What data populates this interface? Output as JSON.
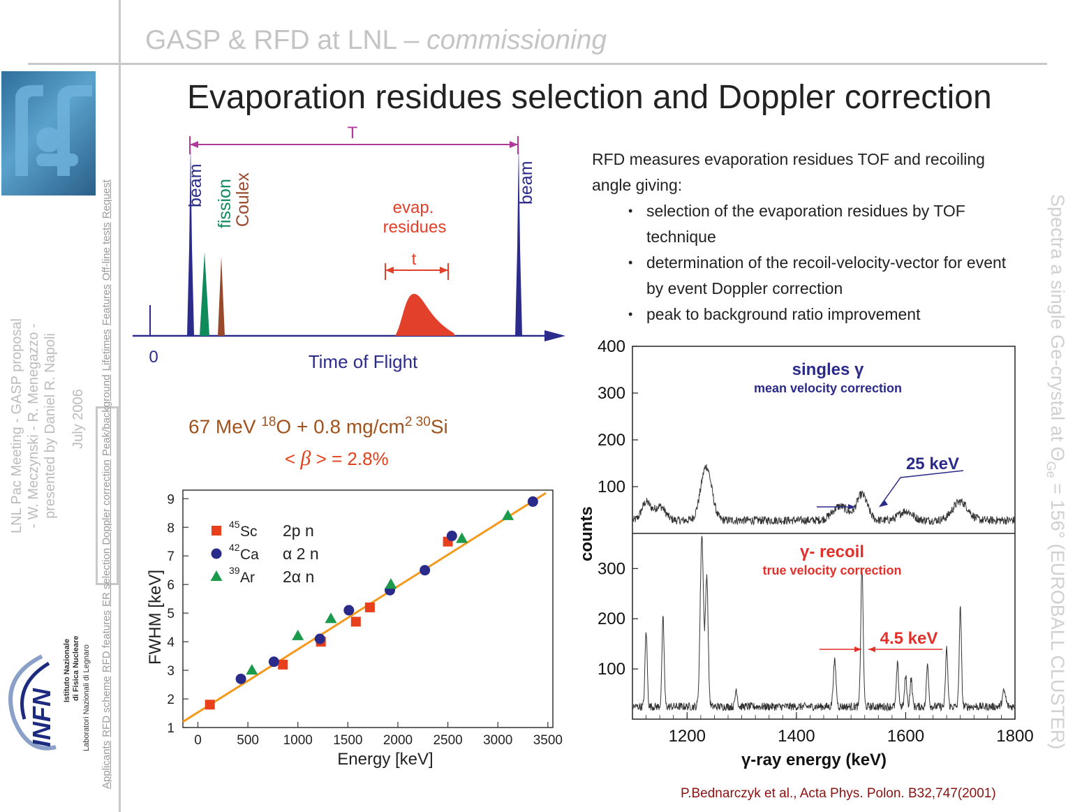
{
  "header": {
    "main": "GASP & RFD at LNL – ",
    "italic": "commissioning"
  },
  "title": "Evaporation residues selection and Doppler correction",
  "meeting": {
    "line1": "LNL Pac Meeting - GASP proposal",
    "line2": "- W. Meczynski - R. Menegazzo -",
    "line3": "presented by Daniel R. Napoli",
    "date": "July 2006"
  },
  "nav_links": [
    "Applicants",
    "RFD scheme",
    "RFD features",
    "ER selection Doppler correction",
    "Peak/background",
    "Lifetimes",
    "Features",
    "Off-line tests",
    "Request"
  ],
  "infn": {
    "line1": "Istituto Nazionale",
    "line2": "di Fisica Nucleare",
    "line3": "Laboratori Nazionali di Legnaro",
    "logo_text": "INFN"
  },
  "tof_diagram": {
    "T_label": "T",
    "beam_left": "beam",
    "beam_right": "beam",
    "fission": "fission",
    "coulex": "Coulex",
    "evap_line1": "evap.",
    "evap_line2": "residues",
    "t_label": "t",
    "zero": "0",
    "axis_label": "Time of Flight",
    "colors": {
      "beam": "#2b2b8c",
      "fission": "#0f8a5a",
      "coulex": "#9a4a2c",
      "evap": "#e2402a",
      "T": "#b03a9a"
    }
  },
  "reaction": {
    "energy": "67 MeV ",
    "proj_mass": "18",
    "proj": "O + 0.8 mg/cm",
    "pow": "2",
    "targ_mass": " 30",
    "targ": "Si"
  },
  "beta_text": {
    "pre": "< ",
    "sym": "β",
    "post": " > = 2.8%"
  },
  "right_text": {
    "intro": "RFD measures evaporation residues TOF and recoiling angle giving:",
    "bullets": [
      "selection of the evaporation residues by TOF technique",
      "determination of the recoil-velocity-vector for event by event Doppler correction",
      "peak to background ratio improvement"
    ]
  },
  "spectra_label": {
    "text": "Spectra a single Ge-crystal at Θ",
    "sub": "Ge",
    "rest": " = 156° (EUROBALL CLUSTER)"
  },
  "reference": "P.Bednarczyk et al., Acta Phys. Polon. B32,747(2001)",
  "chart_data": [
    {
      "type": "scatter",
      "xlabel": "Energy [keV]",
      "ylabel": "FWHM [keV]",
      "xlim": [
        -150,
        3550
      ],
      "ylim": [
        1,
        9.3
      ],
      "xticks": [
        0,
        500,
        1000,
        1500,
        2000,
        2500,
        3000,
        3500
      ],
      "yticks": [
        1,
        2,
        3,
        4,
        5,
        6,
        7,
        8,
        9
      ],
      "legend": [
        {
          "mass": "45",
          "el": "Sc",
          "chan": "2p n",
          "marker": "square",
          "color": "#e8401c"
        },
        {
          "mass": "42",
          "el": "Ca",
          "chan": "α 2 n",
          "marker": "circle",
          "color": "#2a2a8a"
        },
        {
          "mass": "39",
          "el": "Ar",
          "chan": "2α n",
          "marker": "triangle",
          "color": "#1a9a4a"
        }
      ],
      "series": [
        {
          "marker": "square",
          "color": "#e8401c",
          "points": [
            [
              120,
              1.8
            ],
            [
              850,
              3.2
            ],
            [
              1230,
              4.0
            ],
            [
              1580,
              4.7
            ],
            [
              1720,
              5.2
            ],
            [
              2500,
              7.5
            ]
          ]
        },
        {
          "marker": "circle",
          "color": "#2a2a8a",
          "points": [
            [
              430,
              2.7
            ],
            [
              760,
              3.3
            ],
            [
              1220,
              4.1
            ],
            [
              1510,
              5.1
            ],
            [
              1920,
              5.8
            ],
            [
              2270,
              6.5
            ],
            [
              2540,
              7.7
            ],
            [
              3350,
              8.9
            ]
          ]
        },
        {
          "marker": "triangle",
          "color": "#1a9a4a",
          "points": [
            [
              540,
              3.0
            ],
            [
              1000,
              4.2
            ],
            [
              1330,
              4.8
            ],
            [
              1930,
              6.0
            ],
            [
              2640,
              7.6
            ],
            [
              3100,
              8.4
            ]
          ]
        }
      ],
      "fit_line": {
        "color": "#f39a1c",
        "x": [
          -150,
          3480
        ],
        "y": [
          1.2,
          9.2
        ]
      }
    },
    {
      "type": "line",
      "xlabel": "γ-ray energy (keV)",
      "ylabel": "counts",
      "xlim": [
        1100,
        1800
      ],
      "xticks": [
        1200,
        1400,
        1600,
        1800
      ],
      "panels": [
        {
          "title": "singles γ",
          "subtitle": "mean velocity correction",
          "title_color": "#2a2a8a",
          "annotation": "25 keV",
          "ylim": [
            0,
            400
          ],
          "yticks": [
            100,
            200,
            300,
            400
          ],
          "baseline": 28,
          "peaks": [
            [
              1125,
              38,
              8
            ],
            [
              1150,
              30,
              10
            ],
            [
              1235,
              115,
              10
            ],
            [
              1480,
              30,
              14
            ],
            [
              1520,
              55,
              10
            ],
            [
              1600,
              20,
              12
            ],
            [
              1700,
              40,
              14
            ]
          ]
        },
        {
          "title": "γ- recoil",
          "subtitle": "true velocity correction",
          "title_color": "#e2302a",
          "annotation": "4.5 keV",
          "ylim": [
            0,
            370
          ],
          "yticks": [
            100,
            200,
            300
          ],
          "baseline": 25,
          "peaks": [
            [
              1125,
              150,
              2
            ],
            [
              1156,
              175,
              2
            ],
            [
              1227,
              340,
              3
            ],
            [
              1236,
              260,
              2.5
            ],
            [
              1290,
              35,
              2
            ],
            [
              1470,
              90,
              2.5
            ],
            [
              1520,
              275,
              2.2
            ],
            [
              1585,
              85,
              2
            ],
            [
              1600,
              60,
              2
            ],
            [
              1610,
              55,
              2
            ],
            [
              1640,
              85,
              2
            ],
            [
              1675,
              115,
              2
            ],
            [
              1700,
              195,
              2
            ],
            [
              1780,
              30,
              3
            ]
          ]
        }
      ]
    }
  ]
}
